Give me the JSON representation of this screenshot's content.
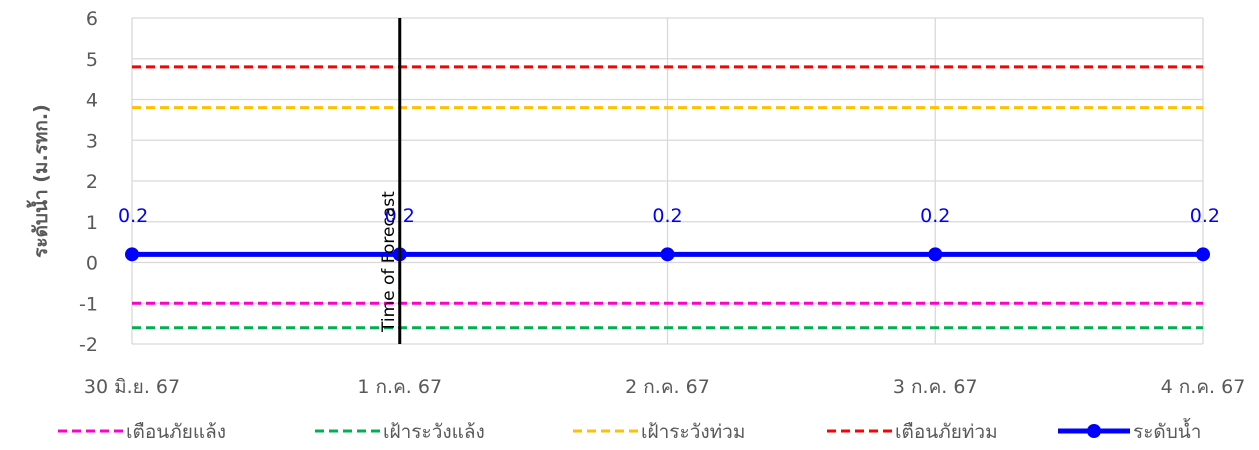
{
  "chart_data": {
    "type": "line",
    "x": [
      "30 มิ.ย. 67",
      "1 ก.ค. 67",
      "2 ก.ค. 67",
      "3 ก.ค. 67",
      "4 ก.ค. 67"
    ],
    "ylabel": "ระดับน้ำ (ม.รทก.)",
    "ylim": [
      -2,
      6
    ],
    "yticks": [
      "-2",
      "-1",
      "0",
      "1",
      "2",
      "3",
      "4",
      "5",
      "6"
    ],
    "grid": true,
    "legend_position": "bottom",
    "series": [
      {
        "name": "เตือนภัยแล้ง",
        "values": [
          -1,
          -1,
          -1,
          -1,
          -1
        ],
        "color": "#ff00cc",
        "style": "dashed"
      },
      {
        "name": "เฝ้าระวังแล้ง",
        "values": [
          -1.6,
          -1.6,
          -1.6,
          -1.6,
          -1.6
        ],
        "color": "#00b050",
        "style": "dashed"
      },
      {
        "name": "เฝ้าระวังท่วม",
        "values": [
          3.8,
          3.8,
          3.8,
          3.8,
          3.8
        ],
        "color": "#ffc000",
        "style": "dashed"
      },
      {
        "name": "เตือนภัยท่วม",
        "values": [
          4.8,
          4.8,
          4.8,
          4.8,
          4.8
        ],
        "color": "#ff0000",
        "style": "dashed"
      },
      {
        "name": "ระดับน้ำ",
        "values": [
          0.2,
          0.2,
          0.2,
          0.2,
          0.2
        ],
        "color": "#0000ff",
        "style": "solid-marker",
        "labels": [
          "0.2",
          "0.2",
          "0.2",
          "0.2",
          "0.2"
        ]
      }
    ],
    "annotation": {
      "text": "Time of Forecast",
      "at": "1 ก.ค. 67",
      "color": "#000000"
    }
  }
}
